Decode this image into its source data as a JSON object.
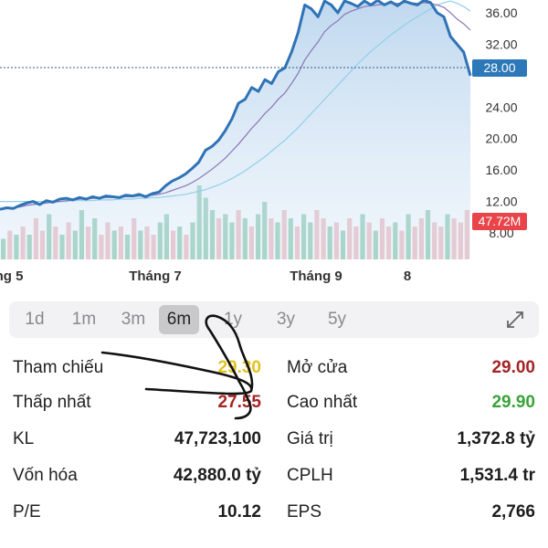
{
  "chart_data": {
    "type": "line",
    "x_ticks": [
      "ng 5",
      "Tháng 7",
      "Tháng 9",
      "8"
    ],
    "y_ticks": [
      "36.00",
      "32.00",
      "28.00",
      "24.00",
      "20.00",
      "16.00",
      "12.00",
      "8.00"
    ],
    "ylim": [
      8,
      36
    ],
    "price_series": [
      11.0,
      11.2,
      11.1,
      11.5,
      11.8,
      12.0,
      11.6,
      12.1,
      11.9,
      12.3,
      12.4,
      12.2,
      12.5,
      12.3,
      12.6,
      12.4,
      12.7,
      12.6,
      12.5,
      12.8,
      12.7,
      12.9,
      12.6,
      13.0,
      13.2,
      14.0,
      14.6,
      15.0,
      15.5,
      16.2,
      17.0,
      18.5,
      19.0,
      19.8,
      21.0,
      22.5,
      24.5,
      25.0,
      26.5,
      26.0,
      27.5,
      27.0,
      28.5,
      29.0,
      31.0,
      33.5,
      37.0,
      36.5,
      35.5,
      37.5,
      37.0,
      36.0,
      37.5,
      37.2,
      36.8,
      37.5,
      37.0,
      37.6,
      37.0,
      37.4,
      36.9,
      37.5,
      37.2,
      37.0,
      37.6,
      37.3,
      36.0,
      35.5,
      33.0,
      32.0,
      31.0,
      28.0
    ],
    "ma_short_series": [
      11.0,
      11.1,
      11.2,
      11.3,
      11.5,
      11.6,
      11.7,
      11.8,
      11.9,
      12.0,
      12.1,
      12.2,
      12.3,
      12.3,
      12.4,
      12.4,
      12.5,
      12.5,
      12.5,
      12.6,
      12.6,
      12.7,
      12.7,
      12.8,
      12.9,
      13.1,
      13.4,
      13.7,
      14.0,
      14.4,
      14.9,
      15.5,
      16.1,
      16.8,
      17.5,
      18.4,
      19.3,
      20.3,
      21.3,
      22.2,
      23.2,
      24.0,
      25.0,
      25.8,
      27.0,
      28.3,
      30.0,
      31.2,
      32.3,
      33.6,
      34.4,
      35.0,
      35.8,
      36.2,
      36.5,
      36.8,
      36.9,
      37.0,
      37.1,
      37.2,
      37.2,
      37.3,
      37.3,
      37.2,
      37.3,
      37.2,
      37.0,
      36.7,
      36.0,
      35.2,
      34.6,
      33.8
    ],
    "ma_long_series": [
      12.0,
      12.0,
      12.0,
      12.0,
      12.0,
      12.0,
      12.0,
      12.0,
      12.0,
      12.0,
      12.0,
      12.1,
      12.1,
      12.1,
      12.1,
      12.2,
      12.2,
      12.2,
      12.3,
      12.3,
      12.3,
      12.4,
      12.4,
      12.5,
      12.5,
      12.6,
      12.7,
      12.8,
      12.9,
      13.1,
      13.3,
      13.5,
      13.8,
      14.1,
      14.5,
      14.9,
      15.4,
      15.9,
      16.5,
      17.1,
      17.7,
      18.4,
      19.1,
      19.8,
      20.6,
      21.4,
      22.3,
      23.2,
      24.1,
      25.0,
      25.9,
      26.8,
      27.7,
      28.6,
      29.5,
      30.3,
      31.1,
      31.8,
      32.5,
      33.2,
      33.8,
      34.4,
      35.0,
      35.5,
      36.0,
      36.5,
      37.0,
      37.3,
      37.5,
      37.2,
      36.8,
      36.2
    ],
    "volume_bars": [
      0.25,
      0.35,
      0.3,
      0.4,
      0.3,
      0.5,
      0.35,
      0.55,
      0.4,
      0.3,
      0.45,
      0.35,
      0.6,
      0.4,
      0.5,
      0.3,
      0.45,
      0.35,
      0.4,
      0.3,
      0.5,
      0.35,
      0.4,
      0.3,
      0.45,
      0.55,
      0.35,
      0.4,
      0.3,
      0.45,
      0.9,
      0.75,
      0.6,
      0.5,
      0.55,
      0.45,
      0.6,
      0.5,
      0.4,
      0.55,
      0.7,
      0.5,
      0.45,
      0.6,
      0.5,
      0.4,
      0.55,
      0.45,
      0.6,
      0.5,
      0.4,
      0.45,
      0.35,
      0.5,
      0.4,
      0.55,
      0.45,
      0.35,
      0.5,
      0.4,
      0.45,
      0.35,
      0.55,
      0.4,
      0.5,
      0.6,
      0.45,
      0.4,
      0.55,
      0.5,
      0.45,
      0.6
    ],
    "volume_colors": [
      "g",
      "r",
      "g",
      "r",
      "g",
      "r",
      "r",
      "g",
      "r",
      "g",
      "r",
      "g",
      "g",
      "r",
      "g",
      "r",
      "r",
      "g",
      "r",
      "g",
      "r",
      "g",
      "r",
      "r",
      "g",
      "g",
      "r",
      "g",
      "r",
      "g",
      "g",
      "g",
      "g",
      "r",
      "g",
      "g",
      "r",
      "g",
      "r",
      "g",
      "g",
      "r",
      "g",
      "r",
      "g",
      "r",
      "g",
      "g",
      "r",
      "r",
      "g",
      "r",
      "g",
      "r",
      "r",
      "g",
      "r",
      "g",
      "r",
      "r",
      "g",
      "r",
      "g",
      "r",
      "r",
      "g",
      "r",
      "r",
      "g",
      "r",
      "r",
      "r"
    ],
    "current_price_label": "28.00",
    "current_volume_label": "47.72M"
  },
  "colors": {
    "price_line": "#2f73b7",
    "area_fill": "#cfe3f3",
    "ma_short": "#8a77b3",
    "ma_long": "#8fd0ea",
    "vol_green": "#5bb38b",
    "vol_red": "#e79a9f",
    "price_badge": "#2c78b8",
    "volume_badge": "#e8444a"
  },
  "tabs": [
    "1d",
    "1m",
    "3m",
    "6m",
    "1y",
    "3y",
    "5y"
  ],
  "active_tab": "6m",
  "stats_left": [
    {
      "label": "Tham chiếu",
      "value": "29.30",
      "tone": "yellow"
    },
    {
      "label": "Thấp nhất",
      "value": "27.55",
      "tone": "red"
    },
    {
      "label": "KL",
      "value": "47,723,100",
      "tone": "dark"
    },
    {
      "label": "Vốn hóa",
      "value": "42,880.0 tỷ",
      "tone": "dark"
    },
    {
      "label": "P/E",
      "value": "10.12",
      "tone": "dark"
    }
  ],
  "stats_right": [
    {
      "label": "Mở cửa",
      "value": "29.00",
      "tone": "red"
    },
    {
      "label": "Cao nhất",
      "value": "29.90",
      "tone": "green"
    },
    {
      "label": "Giá trị",
      "value": "1,372.8 tỷ",
      "tone": "dark"
    },
    {
      "label": "CPLH",
      "value": "1,531.4 tr",
      "tone": "dark"
    },
    {
      "label": "EPS",
      "value": "2,766",
      "tone": "dark"
    }
  ]
}
